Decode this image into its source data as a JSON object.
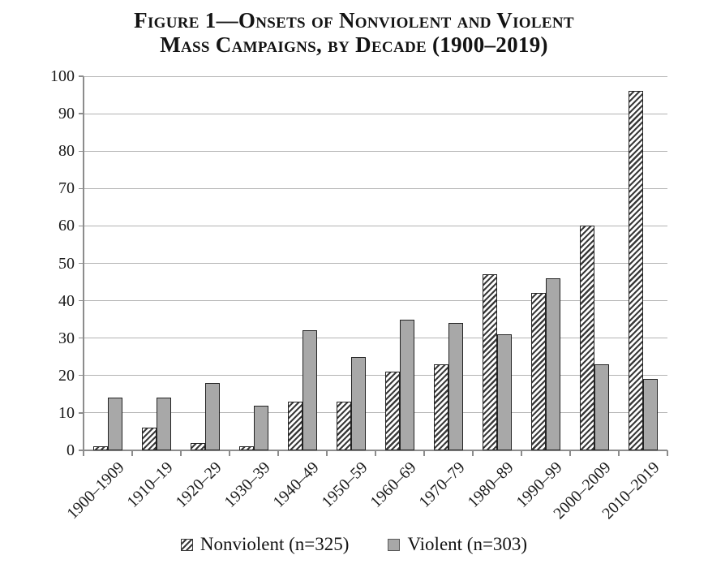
{
  "title": {
    "line1": "Figure 1—Onsets of Nonviolent and Violent",
    "line2": "Mass Campaigns, by Decade (1900–2019)"
  },
  "chart_data": {
    "type": "bar",
    "title": "Figure 1—Onsets of Nonviolent and Violent Mass Campaigns, by Decade (1900–2019)",
    "categories": [
      "1900–1909",
      "1910–19",
      "1920–29",
      "1930–39",
      "1940–49",
      "1950–59",
      "1960–69",
      "1970–79",
      "1980–89",
      "1990–99",
      "2000–2009",
      "2010–2019"
    ],
    "series": [
      {
        "name": "Nonviolent (n=325)",
        "style": "hatched",
        "values": [
          1,
          6,
          2,
          1,
          13,
          13,
          21,
          23,
          47,
          42,
          60,
          96
        ]
      },
      {
        "name": "Violent (n=303)",
        "style": "solid-gray",
        "values": [
          14,
          14,
          18,
          12,
          32,
          25,
          35,
          34,
          31,
          46,
          23,
          19
        ]
      }
    ],
    "xlabel": "",
    "ylabel": "",
    "ylim": [
      0,
      100
    ],
    "ytick_step": 10,
    "grid": "horizontal",
    "legend_position": "bottom"
  },
  "colors": {
    "violent_fill": "#a8a8a8",
    "hatch_stripe": "#3a3a3a",
    "bar_border": "#242424",
    "gridline": "#b3b3b3",
    "axis": "#8c8c8c",
    "text": "#1a1a1a"
  }
}
